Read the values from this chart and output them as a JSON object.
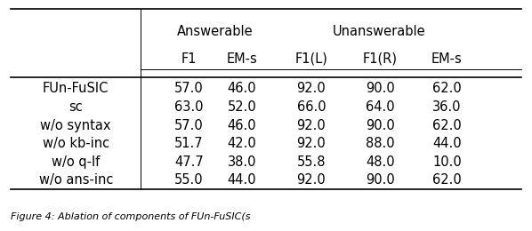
{
  "group_headers": [
    "Answerable",
    "Unanswerable"
  ],
  "col_headers": [
    "F1",
    "EM-s",
    "F1(L)",
    "F1(R)",
    "EM-s"
  ],
  "row_labels": [
    "FUn-FuSIC",
    "sc",
    "w/o syntax",
    "w/o kb-inc",
    "w/o q-lf",
    "w/o ans-inc"
  ],
  "data": [
    [
      "57.0",
      "46.0",
      "92.0",
      "90.0",
      "62.0"
    ],
    [
      "63.0",
      "52.0",
      "66.0",
      "64.0",
      "36.0"
    ],
    [
      "57.0",
      "46.0",
      "92.0",
      "90.0",
      "62.0"
    ],
    [
      "51.7",
      "42.0",
      "92.0",
      "88.0",
      "44.0"
    ],
    [
      "47.7",
      "38.0",
      "55.8",
      "48.0",
      "10.0"
    ],
    [
      "55.0",
      "44.0",
      "92.0",
      "90.0",
      "62.0"
    ]
  ],
  "font_size": 10.5,
  "caption": "Figure 4: Ablation of components of FUn-FuSIC(s",
  "caption_fontsize": 8.0
}
